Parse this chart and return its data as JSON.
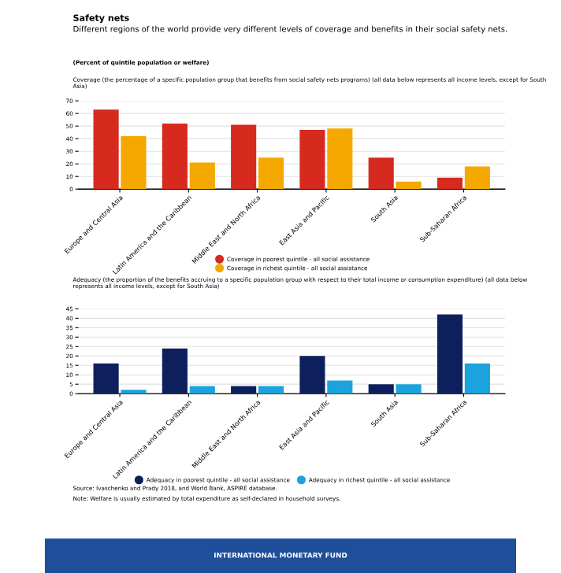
{
  "chart_data": [
    {
      "type": "bar",
      "title": "Safety nets",
      "subtitle": "Different regions of the world provide very different levels of coverage and benefits in their social safety nets.",
      "annotations": [
        "(Percent of quintile population or welfare)",
        "Coverage (the percentage of a specific population group that benefits from social safety nets programs) (all data below represents all income levels, except for South Asia)"
      ],
      "categories": [
        "Europe and Central Asia",
        "Latin America and the Caribbean",
        "Middle East and North Africa",
        "East Asia and Pacific",
        "South Asia",
        "Sub-Saharan Africa"
      ],
      "series": [
        {
          "name": "Coverage in poorest quintile - all social assistance",
          "color": "#d62a1e",
          "values": [
            63,
            52,
            51,
            47,
            25,
            9
          ]
        },
        {
          "name": "Coverage in richest quintile - all social assistance",
          "color": "#f5a800",
          "values": [
            42,
            21,
            25,
            48,
            6,
            18
          ]
        }
      ],
      "ylim": [
        0,
        70
      ],
      "yticks": [
        0,
        10,
        20,
        30,
        40,
        50,
        60,
        70
      ],
      "grid": "y",
      "legend": "bottom"
    },
    {
      "type": "bar",
      "annotations": [
        "Adequacy (the proportion of the benefits accruing to a specific population group with respect to their total income or consumption expenditure) (all data below represents all income levels, except for South Asia)",
        "Source: Ivaschenko and Prady 2018, and World Bank, ASPIRE database.",
        "Note: Welfare is usually estimated by total expenditure as self-declared in household surveys.",
        "INTERNATIONAL MONETARY FUND"
      ],
      "categories": [
        "Europe and Central Asia",
        "Latin America and the Caribbean",
        "Middle East and North Africa",
        "East Asia and Pacific",
        "South Asia",
        "Sub-Saharan Africa"
      ],
      "series": [
        {
          "name": "Adequacy in poorest quintile - all social assistance",
          "color": "#0d1f5c",
          "values": [
            16,
            24,
            4,
            20,
            5,
            42
          ]
        },
        {
          "name": "Adequacy in richest quintile - all social assistance",
          "color": "#1aa3dc",
          "values": [
            2,
            4,
            4,
            7,
            5,
            16
          ]
        }
      ],
      "ylim": [
        0,
        45
      ],
      "yticks": [
        0,
        5,
        10,
        15,
        20,
        25,
        30,
        35,
        40,
        45
      ],
      "grid": "y",
      "legend": "bottom"
    }
  ]
}
